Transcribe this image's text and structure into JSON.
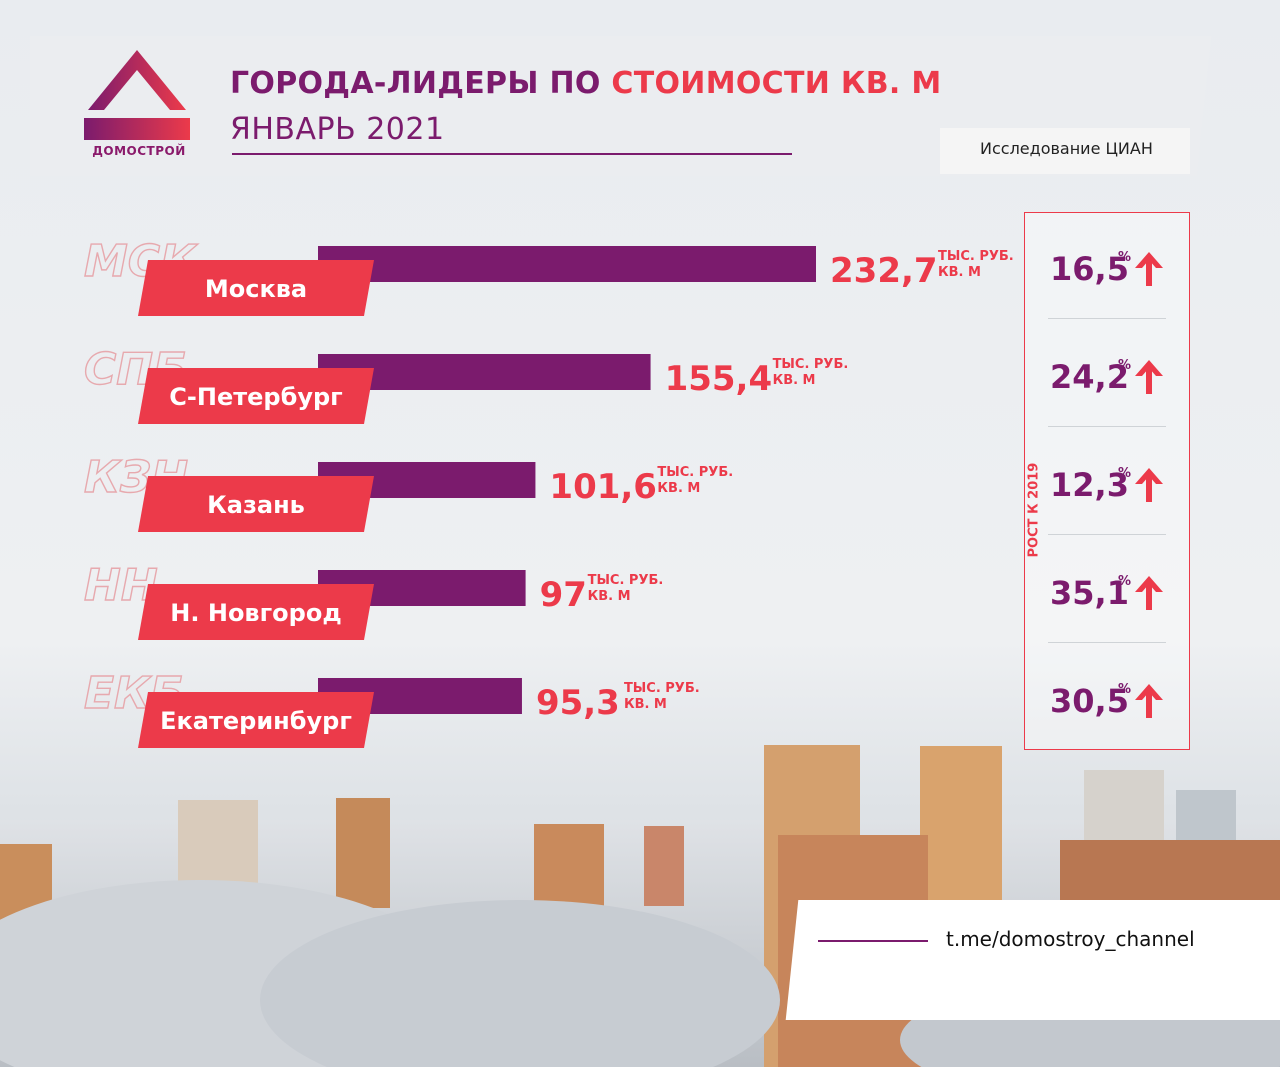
{
  "header": {
    "logo_text": "ДОМОСТРОЙ",
    "title_part1": "ГОРОДА-ЛИДЕРЫ ПО ",
    "title_part2": "СТОИМОСТИ КВ. М",
    "subtitle": "ЯНВАРЬ 2021",
    "source": "Исследование  ЦИАН"
  },
  "colors": {
    "purple": "#7b1b6d",
    "red": "#ec3a4a"
  },
  "chart_data": {
    "type": "bar",
    "title": "ГОРОДА-ЛИДЕРЫ ПО СТОИМОСТИ КВ. М",
    "subtitle": "ЯНВАРЬ 2021",
    "categories": [
      "Москва",
      "С-Петербург",
      "Казань",
      "Н. Новгород",
      "Екатеринбург"
    ],
    "abbreviations": [
      "МСК",
      "СПБ",
      "КЗН",
      "НН",
      "ЕКБ"
    ],
    "values": [
      232.7,
      155.4,
      101.6,
      97,
      95.3
    ],
    "value_labels": [
      "232,7",
      "155,4",
      "101,6",
      "97",
      "95,3"
    ],
    "unit_line1": "ТЫС. РУБ.",
    "unit_line2": "КВ. М",
    "growth_label": "РОСТ К 2019",
    "growth_values": [
      "16,5",
      "24,2",
      "12,3",
      "35,1",
      "30,5"
    ],
    "growth_unit": "%",
    "xlim": [
      0,
      232.7
    ]
  },
  "footer": {
    "link": "t.me/domostroy_channel"
  }
}
